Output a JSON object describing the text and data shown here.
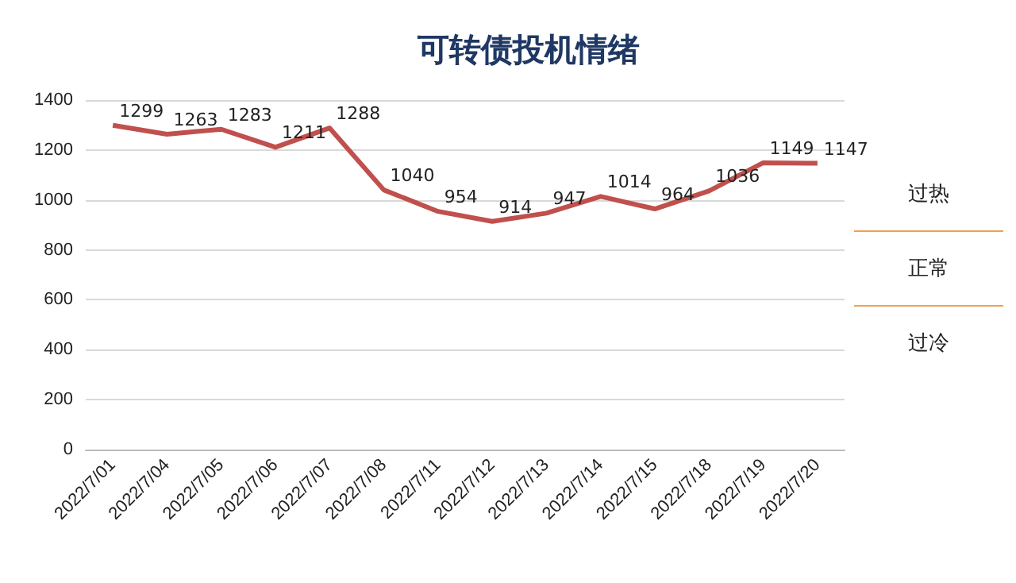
{
  "chart_data": {
    "type": "line",
    "title": "可转债投机情绪",
    "categories": [
      "2022/7/01",
      "2022/7/04",
      "2022/7/05",
      "2022/7/06",
      "2022/7/07",
      "2022/7/08",
      "2022/7/11",
      "2022/7/12",
      "2022/7/13",
      "2022/7/14",
      "2022/7/15",
      "2022/7/18",
      "2022/7/19",
      "2022/7/20"
    ],
    "series": [
      {
        "color": "#c0504d",
        "values": [
          1299,
          1263,
          1283,
          1211,
          1288,
          1040,
          954,
          914,
          947,
          1014,
          964,
          1036,
          1149,
          1147
        ]
      }
    ],
    "ylim": [
      0,
      1400
    ],
    "yticks": [
      0,
      200,
      400,
      600,
      800,
      1000,
      1200,
      1400
    ],
    "grid": "y",
    "data_labels": true,
    "marker": "none",
    "line_style": "solid",
    "annotations": [
      "过热",
      "正常",
      "过冷"
    ]
  }
}
